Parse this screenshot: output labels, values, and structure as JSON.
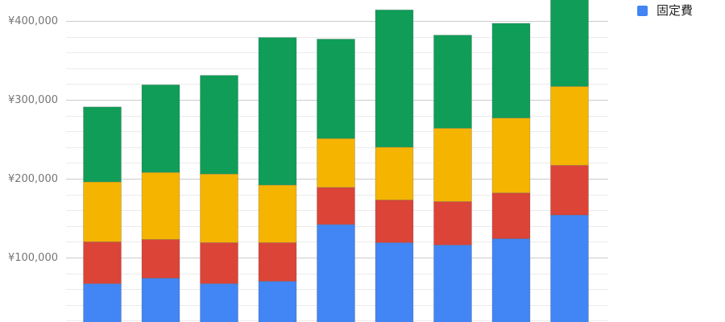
{
  "chart_data": {
    "type": "bar",
    "stacked": true,
    "title": "",
    "xlabel": "",
    "ylabel": "",
    "ylim": [
      0,
      410000
    ],
    "y_ticks": [
      100000,
      200000,
      300000,
      400000
    ],
    "y_tick_labels": [
      "¥100,000",
      "¥200,000",
      "¥300,000",
      "¥400,000"
    ],
    "grid": true,
    "legend_position": "top-right",
    "categories": [
      "",
      "",
      "",
      "",
      "",
      "",
      "",
      "",
      ""
    ],
    "series": [
      {
        "name": "固定費",
        "color": "#4285f4",
        "values": [
          67000,
          74000,
          67000,
          70000,
          142000,
          119000,
          116000,
          124000,
          154000
        ]
      },
      {
        "name": "",
        "color": "#db4437",
        "values": [
          53000,
          49000,
          52000,
          49000,
          47000,
          54000,
          55000,
          58000,
          63000
        ]
      },
      {
        "name": "",
        "color": "#f4b400",
        "values": [
          76000,
          85000,
          87000,
          73000,
          62000,
          67000,
          93000,
          95000,
          100000
        ]
      },
      {
        "name": "",
        "color": "#0f9d58",
        "values": [
          95000,
          111000,
          125000,
          187000,
          126000,
          174000,
          118000,
          120000,
          120000
        ]
      }
    ]
  }
}
